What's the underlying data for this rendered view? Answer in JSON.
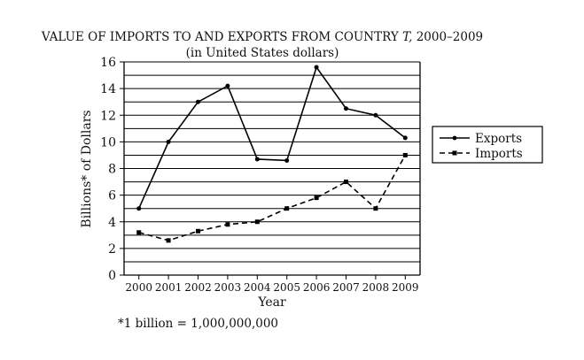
{
  "chart_data": {
    "type": "line",
    "title_prefix": "VALUE OF IMPORTS TO AND EXPORTS FROM COUNTRY",
    "title_country": "T,",
    "title_years": "2000–2009",
    "subtitle": "(in United States dollars)",
    "xlabel": "Year",
    "ylabel": "Billions* of Dollars",
    "footnote": "*1 billion = 1,000,000,000",
    "categories": [
      "2000",
      "2001",
      "2002",
      "2003",
      "2004",
      "2005",
      "2006",
      "2007",
      "2008",
      "2009"
    ],
    "y_ticks": [
      0,
      2,
      4,
      6,
      8,
      10,
      12,
      14,
      16
    ],
    "ylim": [
      0,
      16
    ],
    "grid": true,
    "legend_position": "right",
    "series": [
      {
        "name": "Exports",
        "style": "solid",
        "values": [
          5.0,
          10.0,
          13.0,
          14.2,
          8.7,
          8.6,
          15.6,
          12.5,
          12.0,
          10.3
        ]
      },
      {
        "name": "Imports",
        "style": "dashed",
        "values": [
          3.2,
          2.6,
          3.3,
          3.8,
          4.0,
          5.0,
          5.8,
          7.0,
          5.0,
          9.0
        ]
      }
    ]
  }
}
